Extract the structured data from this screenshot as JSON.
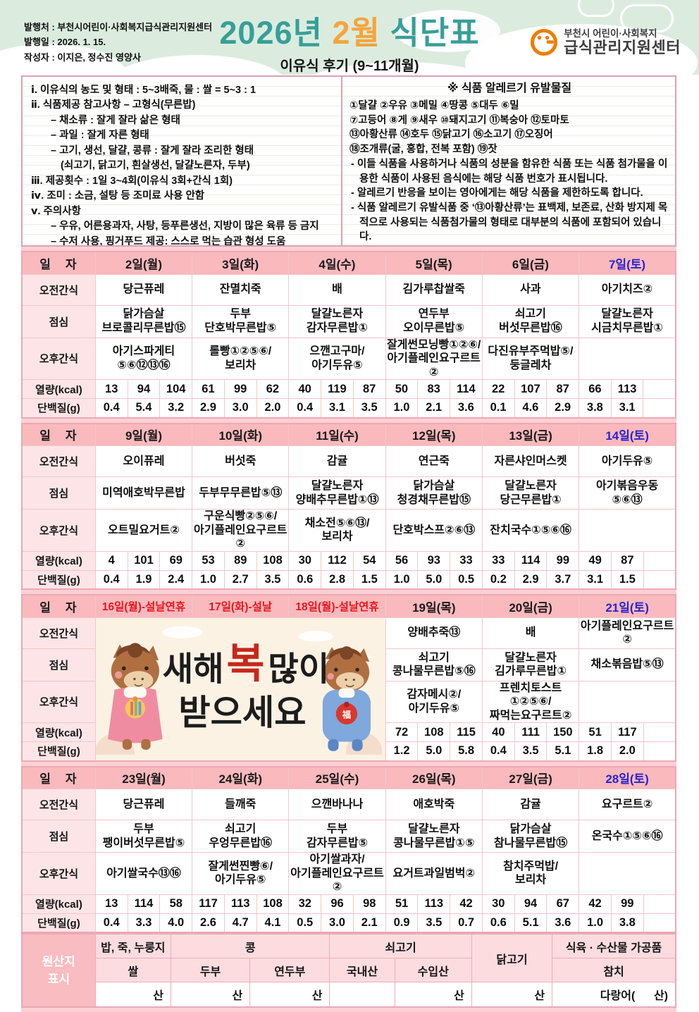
{
  "header": {
    "meta_lines": [
      "발행처 : 부천시어린이·사회복지급식관리지원센터",
      "발행일 : 2026. 1. 15.",
      "작성자 : 이지은, 정수진 영양사"
    ],
    "title": {
      "year": "2026년",
      "month": "2월",
      "suffix": "식단표"
    },
    "subtitle": "이유식 후기 (9~11개월)",
    "logo": {
      "line1": "부천시 어린이·사회복지",
      "line2": "급식관리지원센터"
    },
    "colors": {
      "teal": "#379f98",
      "orange": "#f5a53d",
      "mint": "#dbecdf",
      "header_pink": "#f9b9bd",
      "saturday_blue": "#2b22cb",
      "holiday_red": "#e8151d"
    }
  },
  "notes": {
    "lines": [
      {
        "t": "ⅰ. 이유식의 농도 및 형태 : 5~3배죽, 물 : 쌀 = 5~3 : 1",
        "ind": 0
      },
      {
        "t": "ⅱ. 식품제공 참고사항 – 고형식(무른밥)",
        "ind": 0
      },
      {
        "t": "– 채소류 : 잘게 잘라 삶은 형태",
        "ind": 1
      },
      {
        "t": "– 과일 : 잘게 자른 형태",
        "ind": 1
      },
      {
        "t": "– 고기, 생선, 달걀, 콩류 : 잘게 잘라 조리한 형태",
        "ind": 1
      },
      {
        "t": "(쇠고기, 닭고기, 흰살생선, 달걀노른자, 두부)",
        "ind": 2
      },
      {
        "t": "ⅲ. 제공횟수 : 1일 3~4회(이유식 3회+간식 1회)",
        "ind": 0
      },
      {
        "t": "ⅳ. 조미 : 소금, 설탕 등 조미료 사용 안함",
        "ind": 0
      },
      {
        "t": "ⅴ. 주의사항",
        "ind": 0
      },
      {
        "t": "– 우유, 어른용과자, 사탕, 등푸른생선, 지방이 많은 육류 등 금지",
        "ind": 1
      },
      {
        "t": "– 수저 사용, 핑거푸드 제공: 스스로 먹는 습관 형성 도움",
        "ind": 1
      }
    ]
  },
  "allergy": {
    "title": "※ 식품 알레르기 유발물질",
    "lines": [
      "①달걀 ②우유 ③메밀 ④땅콩 ⑤대두 ⑥밀",
      "⑦고등어 ⑧게 ⑨새우 ⑩돼지고기 ⑪복숭아 ⑫토마토",
      "⑬아황산류 ⑭호두 ⑮닭고기 ⑯소고기 ⑰오징어",
      "⑱조개류(굴, 홍합, 전복 포함) ⑲잣",
      "- 이들 식품을 사용하거나 식품의 성분을 함유한 식품 또는 식품 첨가물을 이용한 식품이 사용된 음식에는 해당 식품 번호가 표시됩니다.",
      "- 알레르기 반응을 보이는 영아에게는 해당 식품을 제한하도록 합니다.",
      "- 식품 알레르기 유발식품 중 ‘⑬아황산류’는 표백제, 보존료, 산화 방지제 목적으로 사용되는 식품첨가물의 형태로 대부분의 식품에 포함되어 있습니다."
    ]
  },
  "row_labels": [
    "일　자",
    "오전간식",
    "점심",
    "오후간식",
    "열량(kcal)",
    "단백질(g)"
  ],
  "weeks": [
    {
      "banner": false,
      "days": [
        {
          "date": "2일(월)",
          "style": "",
          "am": "당근퓨레",
          "lunch": "닭가슴살\n브로콜리무른밥⑮",
          "pm": "아기스파게티\n⑤⑥⑫⑬⑯",
          "kcal": [
            "13",
            "94",
            "104"
          ],
          "protein": [
            "0.4",
            "5.4",
            "3.2"
          ]
        },
        {
          "date": "3일(화)",
          "style": "",
          "am": "잔멸치죽",
          "lunch": "두부\n단호박무른밥⑤",
          "pm": "롤빵①②⑤⑥/\n보리차",
          "kcal": [
            "61",
            "99",
            "62"
          ],
          "protein": [
            "2.9",
            "3.0",
            "2.0"
          ]
        },
        {
          "date": "4일(수)",
          "style": "",
          "am": "배",
          "lunch": "달걀노른자\n감자무른밥①",
          "pm": "으깬고구마/\n아기두유⑤",
          "kcal": [
            "40",
            "119",
            "87"
          ],
          "protein": [
            "0.4",
            "3.1",
            "3.5"
          ]
        },
        {
          "date": "5일(목)",
          "style": "",
          "am": "김가루찹쌀죽",
          "lunch": "연두부\n오이무른밥⑤",
          "pm": "잘게썬모닝빵①②⑥/\n아기플레인요구르트②",
          "kcal": [
            "50",
            "83",
            "114"
          ],
          "protein": [
            "1.0",
            "2.1",
            "3.6"
          ]
        },
        {
          "date": "6일(금)",
          "style": "",
          "am": "사과",
          "lunch": "쇠고기\n버섯무른밥⑯",
          "pm": "다진유부주먹밥⑤/\n둥글레차",
          "kcal": [
            "22",
            "107",
            "87"
          ],
          "protein": [
            "0.1",
            "4.6",
            "2.9"
          ]
        },
        {
          "date": "7일(토)",
          "style": "sat",
          "am": "아기치즈②",
          "lunch": "달걀노른자\n시금치무른밥①",
          "pm": "",
          "kcal": [
            "66",
            "113",
            ""
          ],
          "protein": [
            "3.8",
            "3.1",
            ""
          ]
        }
      ]
    },
    {
      "banner": false,
      "days": [
        {
          "date": "9일(월)",
          "style": "",
          "am": "오이퓨레",
          "lunch": "미역애호박무른밥",
          "pm": "오트밀요거트②",
          "kcal": [
            "4",
            "101",
            "69"
          ],
          "protein": [
            "0.4",
            "1.9",
            "2.4"
          ]
        },
        {
          "date": "10일(화)",
          "style": "",
          "am": "버섯죽",
          "lunch": "두부무무른밥⑤⑬",
          "pm": "구운식빵②⑤⑥/\n아기플레인요구르트②",
          "kcal": [
            "53",
            "89",
            "108"
          ],
          "protein": [
            "1.0",
            "2.7",
            "3.5"
          ]
        },
        {
          "date": "11일(수)",
          "style": "",
          "am": "감귤",
          "lunch": "달걀노른자\n양배추무른밥①⑬",
          "pm": "채소전⑤⑥⑬/\n보리차",
          "kcal": [
            "30",
            "112",
            "54"
          ],
          "protein": [
            "0.6",
            "2.8",
            "1.5"
          ]
        },
        {
          "date": "12일(목)",
          "style": "",
          "am": "연근죽",
          "lunch": "닭가슴살\n청경채무른밥⑮",
          "pm": "단호박스프②⑥⑬",
          "kcal": [
            "56",
            "93",
            "33"
          ],
          "protein": [
            "1.0",
            "5.0",
            "0.5"
          ]
        },
        {
          "date": "13일(금)",
          "style": "",
          "am": "자른샤인머스켓",
          "lunch": "달걀노른자\n당근무른밥①",
          "pm": "잔치국수①⑤⑥⑯",
          "kcal": [
            "33",
            "114",
            "99"
          ],
          "protein": [
            "0.2",
            "2.9",
            "3.7"
          ]
        },
        {
          "date": "14일(토)",
          "style": "sat",
          "am": "아기두유⑤",
          "lunch": "아기볶음우동\n⑤⑥⑬",
          "pm": "",
          "kcal": [
            "49",
            "87",
            ""
          ],
          "protein": [
            "3.1",
            "1.5",
            ""
          ]
        }
      ]
    },
    {
      "banner": true,
      "days": [
        {
          "date": "16일(월)-설날연휴",
          "style": "holiday",
          "am": "",
          "lunch": "",
          "pm": "",
          "kcal": [
            "",
            "",
            ""
          ],
          "protein": [
            "",
            "",
            ""
          ]
        },
        {
          "date": "17일(화)-설날",
          "style": "holiday",
          "am": "",
          "lunch": "",
          "pm": "",
          "kcal": [
            "",
            "",
            ""
          ],
          "protein": [
            "",
            "",
            ""
          ]
        },
        {
          "date": "18일(월)-설날연휴",
          "style": "holiday",
          "am": "",
          "lunch": "",
          "pm": "",
          "kcal": [
            "",
            "",
            ""
          ],
          "protein": [
            "",
            "",
            ""
          ]
        },
        {
          "date": "19일(목)",
          "style": "",
          "am": "양배추죽⑬",
          "lunch": "쇠고기\n콩나물무른밥⑤⑯",
          "pm": "감자메시②/\n아기두유⑤",
          "kcal": [
            "72",
            "108",
            "115"
          ],
          "protein": [
            "1.2",
            "5.0",
            "5.8"
          ]
        },
        {
          "date": "20일(금)",
          "style": "",
          "am": "배",
          "lunch": "달걀노른자\n김가루무른밥①",
          "pm": "프렌치토스트①②⑤⑥/\n짜먹는요구르트②",
          "kcal": [
            "40",
            "111",
            "150"
          ],
          "protein": [
            "0.4",
            "3.5",
            "5.1"
          ]
        },
        {
          "date": "21일(토)",
          "style": "sat",
          "am": "아기플레인요구르트②",
          "lunch": "채소볶음밥⑤⑬",
          "pm": "",
          "kcal": [
            "51",
            "117",
            ""
          ],
          "protein": [
            "1.8",
            "2.0",
            ""
          ]
        }
      ]
    },
    {
      "banner": false,
      "days": [
        {
          "date": "23일(월)",
          "style": "",
          "am": "당근퓨레",
          "lunch": "두부\n팽이버섯무른밥⑤",
          "pm": "아기쌀국수⑬⑯",
          "kcal": [
            "13",
            "114",
            "58"
          ],
          "protein": [
            "0.4",
            "3.3",
            "4.0"
          ]
        },
        {
          "date": "24일(화)",
          "style": "",
          "am": "들깨죽",
          "lunch": "쇠고기\n우엉무른밥⑯",
          "pm": "잘게썬찐빵⑥/\n아기두유⑤",
          "kcal": [
            "117",
            "113",
            "108"
          ],
          "protein": [
            "2.6",
            "4.7",
            "4.1"
          ]
        },
        {
          "date": "25일(수)",
          "style": "",
          "am": "으깬바나나",
          "lunch": "두부\n감자무른밥⑤",
          "pm": "아기쌀과자/\n아기플레인요구르트②",
          "kcal": [
            "32",
            "96",
            "98"
          ],
          "protein": [
            "0.5",
            "3.0",
            "2.1"
          ]
        },
        {
          "date": "26일(목)",
          "style": "",
          "am": "애호박죽",
          "lunch": "달걀노른자\n콩나물무른밥①⑤",
          "pm": "요거트과일범벅②",
          "kcal": [
            "51",
            "113",
            "42"
          ],
          "protein": [
            "0.9",
            "3.5",
            "0.7"
          ]
        },
        {
          "date": "27일(금)",
          "style": "",
          "am": "감귤",
          "lunch": "닭가슴살\n참나물무른밥⑮",
          "pm": "참치주먹밥/\n보리차",
          "kcal": [
            "30",
            "94",
            "67"
          ],
          "protein": [
            "0.6",
            "5.1",
            "3.6"
          ]
        },
        {
          "date": "28일(토)",
          "style": "sat",
          "am": "요구르트②",
          "lunch": "온국수①⑤⑥⑯",
          "pm": "",
          "kcal": [
            "42",
            "99",
            ""
          ],
          "protein": [
            "1.0",
            "3.8",
            ""
          ]
        }
      ]
    }
  ],
  "banner": {
    "t1": "새해",
    "t2": "복",
    "t3": "많이",
    "t4": "받으세요",
    "pouch": "福"
  },
  "origin": {
    "label": "원산지\n표시",
    "g1": "밥, 죽, 누룽지",
    "g2": "콩",
    "g3": "쇠고기",
    "g4": "닭고기",
    "g5": "식육 · 수산물 가공품",
    "h1": "쌀",
    "h2": "두부",
    "h3": "연두부",
    "h4": "국내산",
    "h5": "수입산",
    "h6": "참치",
    "v1": "산",
    "v2": "산",
    "v3": "산",
    "v4": "",
    "v5": "산",
    "v6": "산",
    "v7": "다랑어(      산)"
  }
}
